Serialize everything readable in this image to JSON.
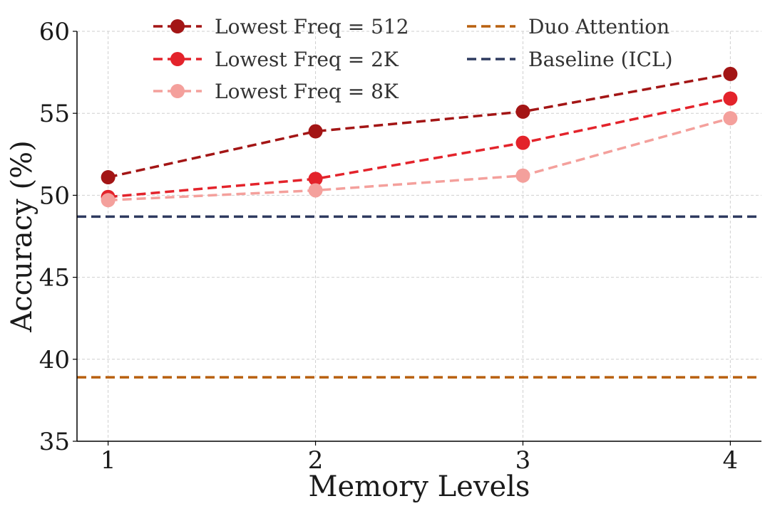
{
  "chart_data": {
    "type": "line",
    "title": "",
    "xlabel": "Memory Levels",
    "ylabel": "Accuracy (%)",
    "x": [
      1,
      2,
      3,
      4
    ],
    "xticks": [
      "1",
      "2",
      "3",
      "4"
    ],
    "xlim": [
      0.85,
      4.15
    ],
    "ylim": [
      35,
      60
    ],
    "yticks": [
      "35",
      "40",
      "45",
      "50",
      "55",
      "60"
    ],
    "grid": true,
    "legend_position": "top",
    "series": [
      {
        "name": "Lowest Freq = 512",
        "values": [
          51.1,
          53.9,
          55.1,
          57.4
        ],
        "color": "#a31515",
        "marker": "circle"
      },
      {
        "name": "Lowest Freq = 2K",
        "values": [
          49.9,
          51.0,
          53.2,
          55.9
        ],
        "color": "#e3232b",
        "marker": "circle"
      },
      {
        "name": "Lowest Freq = 8K",
        "values": [
          49.7,
          50.3,
          51.2,
          54.7
        ],
        "color": "#f4a09c",
        "marker": "circle"
      }
    ],
    "reference_lines": [
      {
        "name": "Duo Attention",
        "value": 38.9,
        "color": "#b8600f"
      },
      {
        "name": "Baseline (ICL)",
        "value": 48.7,
        "color": "#2e3a5f"
      }
    ]
  }
}
